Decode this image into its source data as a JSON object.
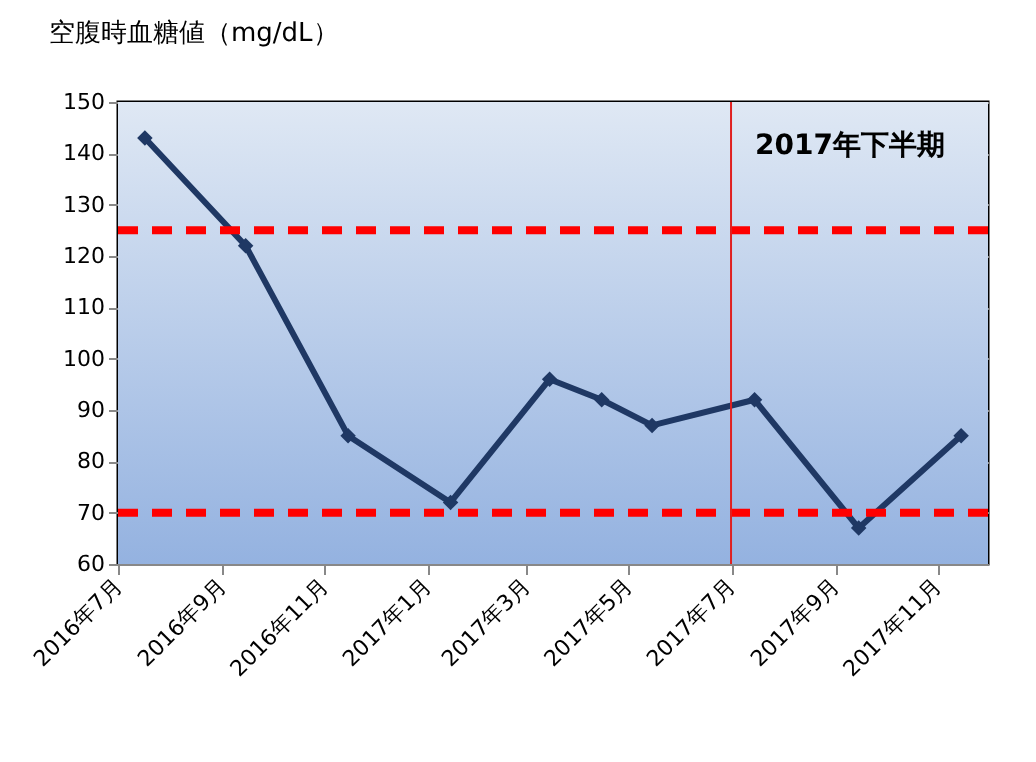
{
  "chart_data": {
    "type": "line",
    "ylabel": "空腹時血糖値（mg/dL）",
    "x": [
      "2016-07-17",
      "2016-09-15",
      "2016-11-15",
      "2017-01-15",
      "2017-03-15",
      "2017-04-15",
      "2017-05-15",
      "2017-07-15",
      "2017-09-15",
      "2017-11-15"
    ],
    "series": [
      {
        "color": "#1f3864",
        "values": [
          143,
          122,
          85,
          72,
          96,
          92,
          87,
          92,
          67,
          85
        ]
      }
    ],
    "xlim": [
      "2016-07-01",
      "2017-12-01"
    ],
    "xticks": [
      {
        "value": "2016-07-01",
        "label": "2016年7月"
      },
      {
        "value": "2016-09-01",
        "label": "2016年9月"
      },
      {
        "value": "2016-11-01",
        "label": "2016年11月"
      },
      {
        "value": "2017-01-01",
        "label": "2017年1月"
      },
      {
        "value": "2017-03-01",
        "label": "2017年3月"
      },
      {
        "value": "2017-05-01",
        "label": "2017年5月"
      },
      {
        "value": "2017-07-01",
        "label": "2017年7月"
      },
      {
        "value": "2017-09-01",
        "label": "2017年9月"
      },
      {
        "value": "2017-11-01",
        "label": "2017年11月"
      }
    ],
    "ylim": [
      60,
      150
    ],
    "yticks": [
      60,
      70,
      80,
      90,
      100,
      110,
      120,
      130,
      140,
      150
    ],
    "ref_lines": [
      {
        "axis": "y",
        "value": 125,
        "color": "#ff0000",
        "line_style": "dashed"
      },
      {
        "axis": "y",
        "value": 70,
        "color": "#ff0000",
        "line_style": "dashed"
      },
      {
        "axis": "x",
        "value": "2017-07-01",
        "label": "2017年下半期",
        "color": "#e02020",
        "line_style": "solid"
      }
    ],
    "grid": "y",
    "marker": "diamond",
    "line_style": "solid"
  }
}
